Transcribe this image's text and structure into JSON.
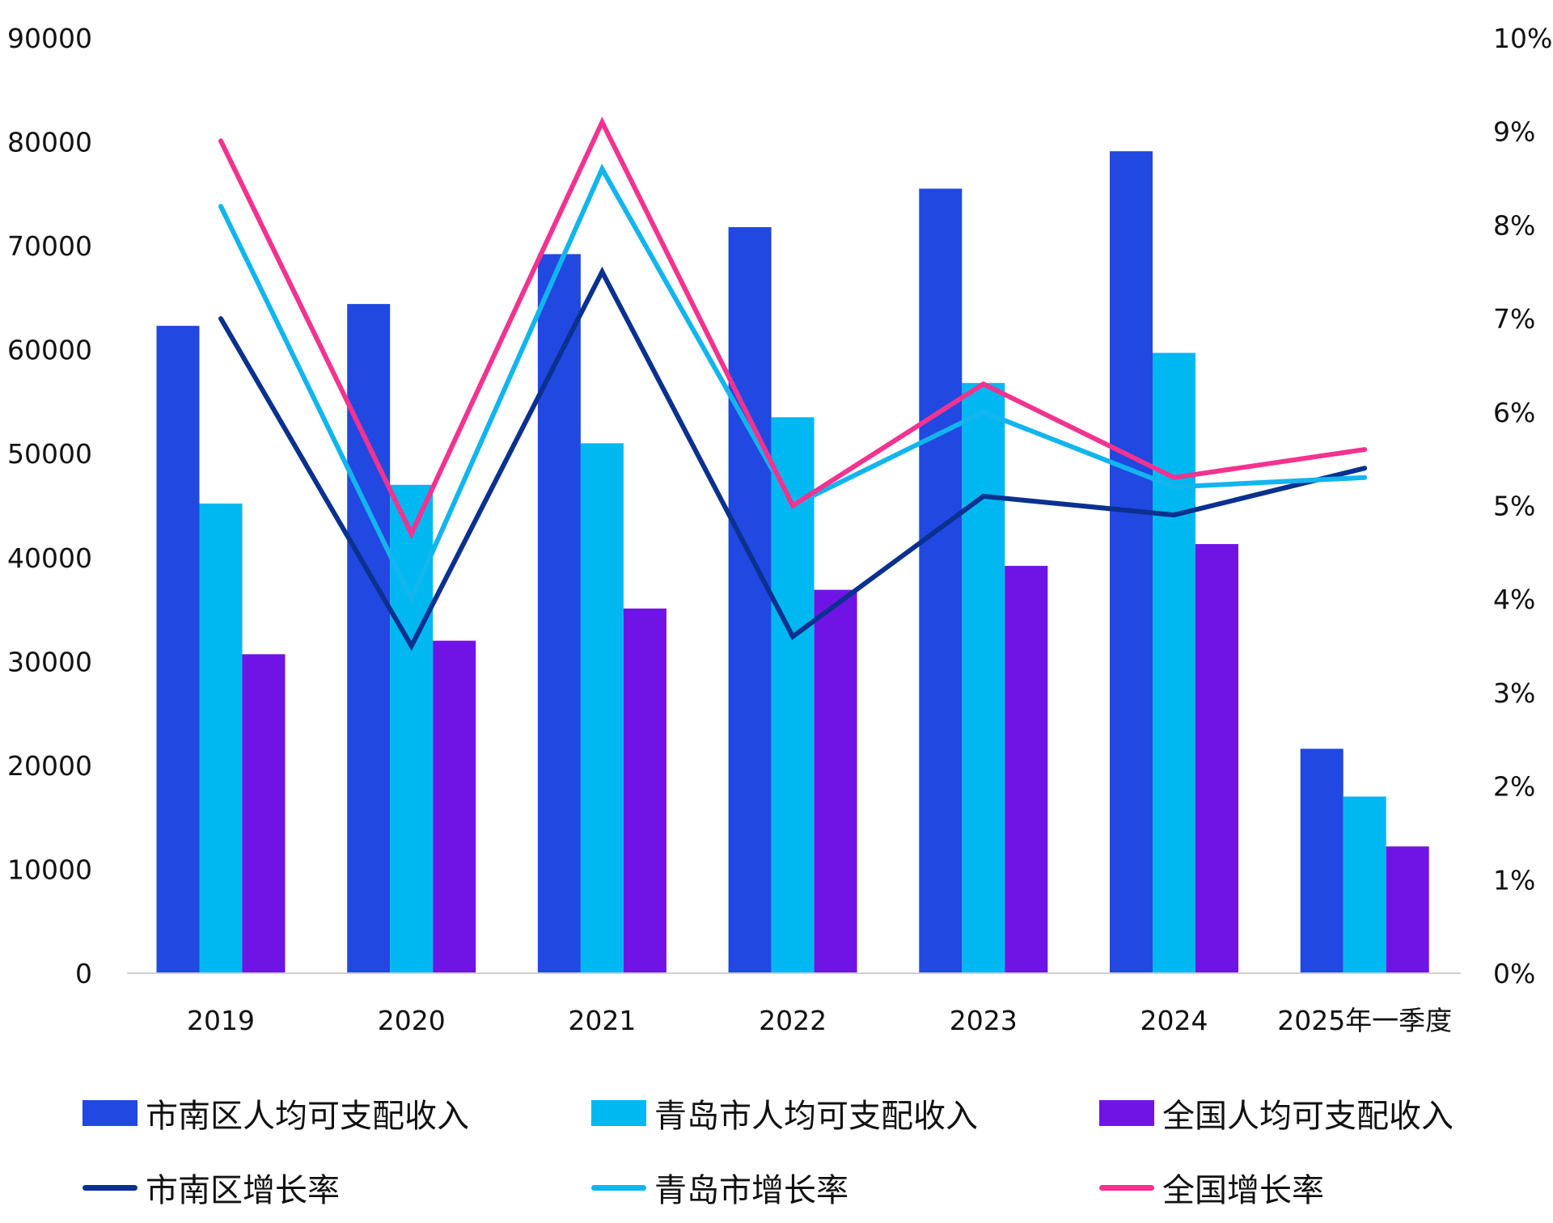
{
  "chart_data": {
    "type": "bar",
    "categories": [
      "2019",
      "2020",
      "2021",
      "2022",
      "2023",
      "2024",
      "2025年一季度"
    ],
    "left_axis": {
      "ylim": [
        0,
        90000
      ],
      "ticks": [
        "0",
        "10000",
        "20000",
        "30000",
        "40000",
        "50000",
        "60000",
        "70000",
        "80000",
        "90000"
      ]
    },
    "right_axis": {
      "ylim": [
        0,
        10
      ],
      "ticks": [
        "0%",
        "1%",
        "2%",
        "3%",
        "4%",
        "5%",
        "6%",
        "7%",
        "8%",
        "9%",
        "10%"
      ]
    },
    "bar_series": [
      {
        "name": "市南区人均可支配收入",
        "color": "#2148E0",
        "values": [
          62300,
          64400,
          69200,
          71800,
          75500,
          79100,
          21600
        ]
      },
      {
        "name": "青岛市人均可支配收入",
        "color": "#00B8F1",
        "values": [
          45200,
          47000,
          51000,
          53500,
          56800,
          59700,
          17000
        ]
      },
      {
        "name": "全国人均可支配收入",
        "color": "#7014E6",
        "values": [
          30700,
          32000,
          35100,
          36900,
          39200,
          41300,
          12200
        ]
      }
    ],
    "line_series": [
      {
        "name": "市南区增长率",
        "color": "#0A318F",
        "values": [
          7.0,
          3.5,
          7.5,
          3.6,
          5.1,
          4.9,
          5.4
        ]
      },
      {
        "name": "青岛市增长率",
        "color": "#12B5EE",
        "values": [
          8.2,
          4.0,
          8.6,
          5.0,
          6.0,
          5.2,
          5.3
        ]
      },
      {
        "name": "全国增长率",
        "color": "#F2338F",
        "values": [
          8.9,
          4.7,
          9.1,
          5.0,
          6.3,
          5.3,
          5.6
        ]
      }
    ],
    "legend_position": "bottom",
    "grid": false
  }
}
